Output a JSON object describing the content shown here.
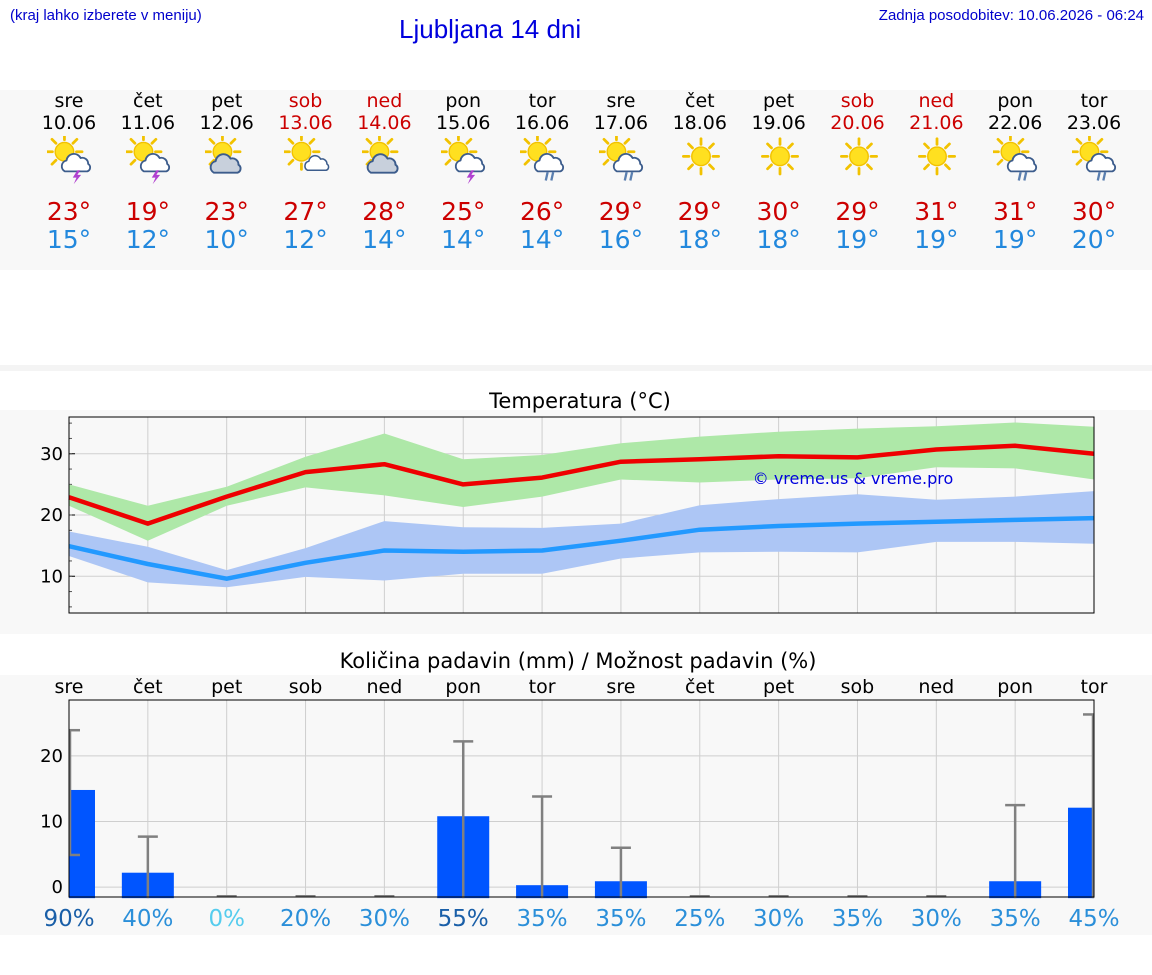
{
  "header": {
    "hint": "(kraj lahko izberete v meniju)",
    "title": "Ljubljana 14 dni",
    "updated": "Zadnja posodobitev: 10.06.2026 - 06:24"
  },
  "colors": {
    "max_temp": "#ee0000",
    "min_temp": "#2299ff",
    "max_range": "#aee8a8",
    "min_range": "#adc6f5",
    "precip_bar": "#0055ff",
    "precip_error": "#808080",
    "weekend": "#cc0000"
  },
  "days": [
    {
      "name": "sre",
      "date": "10.06",
      "weekend": false,
      "icon": "sun-cloud-thunder-icon",
      "max": "23°",
      "min": "15°"
    },
    {
      "name": "čet",
      "date": "11.06",
      "weekend": false,
      "icon": "sun-cloud-thunder-icon",
      "max": "19°",
      "min": "12°"
    },
    {
      "name": "pet",
      "date": "12.06",
      "weekend": false,
      "icon": "sun-cloud-icon",
      "max": "23°",
      "min": "10°"
    },
    {
      "name": "sob",
      "date": "13.06",
      "weekend": true,
      "icon": "sun-small-cloud-icon",
      "max": "27°",
      "min": "12°"
    },
    {
      "name": "ned",
      "date": "14.06",
      "weekend": true,
      "icon": "sun-cloud-icon",
      "max": "28°",
      "min": "14°"
    },
    {
      "name": "pon",
      "date": "15.06",
      "weekend": false,
      "icon": "sun-cloud-thunder-icon",
      "max": "25°",
      "min": "14°"
    },
    {
      "name": "tor",
      "date": "16.06",
      "weekend": false,
      "icon": "sun-cloud-rain-icon",
      "max": "26°",
      "min": "14°"
    },
    {
      "name": "sre",
      "date": "17.06",
      "weekend": false,
      "icon": "sun-cloud-rain-icon",
      "max": "29°",
      "min": "16°"
    },
    {
      "name": "čet",
      "date": "18.06",
      "weekend": false,
      "icon": "sun-icon",
      "max": "29°",
      "min": "18°"
    },
    {
      "name": "pet",
      "date": "19.06",
      "weekend": false,
      "icon": "sun-icon",
      "max": "30°",
      "min": "18°"
    },
    {
      "name": "sob",
      "date": "20.06",
      "weekend": true,
      "icon": "sun-icon",
      "max": "29°",
      "min": "19°"
    },
    {
      "name": "ned",
      "date": "21.06",
      "weekend": true,
      "icon": "sun-icon",
      "max": "31°",
      "min": "19°"
    },
    {
      "name": "pon",
      "date": "22.06",
      "weekend": false,
      "icon": "sun-cloud-rain-icon",
      "max": "31°",
      "min": "19°"
    },
    {
      "name": "tor",
      "date": "23.06",
      "weekend": false,
      "icon": "sun-cloud-rain-icon",
      "max": "30°",
      "min": "20°"
    }
  ],
  "chart_data": [
    {
      "type": "line",
      "title": "Temperatura (°C)",
      "watermark": "© vreme.us & vreme.pro",
      "ylim": [
        4,
        36
      ],
      "yticks": [
        10,
        20,
        30
      ],
      "grid": true,
      "x_count": 14,
      "series": [
        {
          "role": "max",
          "values": [
            22.9,
            18.6,
            23.0,
            27.0,
            28.3,
            25.0,
            26.1,
            28.7,
            29.1,
            29.6,
            29.4,
            30.7,
            31.3,
            30.0
          ],
          "band_low": [
            21.5,
            15.8,
            21.5,
            24.5,
            23.2,
            21.3,
            23.0,
            25.8,
            25.3,
            25.8,
            26.0,
            27.8,
            27.6,
            25.8
          ],
          "band_high": [
            25.0,
            21.5,
            24.6,
            29.5,
            33.3,
            29.1,
            29.8,
            31.7,
            32.8,
            33.6,
            34.1,
            34.5,
            35.1,
            34.4
          ]
        },
        {
          "role": "min",
          "values": [
            14.9,
            12.0,
            9.6,
            12.2,
            14.2,
            14.0,
            14.2,
            15.8,
            17.6,
            18.2,
            18.6,
            18.9,
            19.2,
            19.5
          ],
          "band_low": [
            13.3,
            9.0,
            8.2,
            9.9,
            9.3,
            10.4,
            10.4,
            12.9,
            13.9,
            14.0,
            13.9,
            15.6,
            15.6,
            15.3
          ],
          "band_high": [
            17.3,
            14.8,
            11.0,
            14.6,
            19.0,
            18.0,
            17.9,
            18.6,
            21.6,
            22.6,
            23.4,
            22.5,
            23.0,
            23.9
          ]
        }
      ]
    },
    {
      "type": "bar",
      "title": "Količina padavin (mm) / Možnost padavin (%)",
      "categories": [
        "sre",
        "čet",
        "pet",
        "sob",
        "ned",
        "pon",
        "tor",
        "sre",
        "čet",
        "pet",
        "sob",
        "ned",
        "pon",
        "tor"
      ],
      "ylim": [
        -1.5,
        28.5
      ],
      "yticks": [
        0,
        10,
        20
      ],
      "grid": true,
      "values": [
        14.8,
        2.2,
        0.0,
        0.0,
        0.0,
        10.8,
        0.3,
        0.9,
        0.0,
        0.0,
        0.0,
        0.0,
        0.9,
        12.1
      ],
      "error_low": [
        4.9,
        0.0,
        0.0,
        0.0,
        0.0,
        0.0,
        0.0,
        0.0,
        0.0,
        0.0,
        0.0,
        0.0,
        0.0,
        0.0
      ],
      "error_high": [
        23.9,
        7.7,
        0.0,
        0.0,
        0.0,
        22.2,
        13.8,
        6.0,
        0.0,
        0.0,
        0.0,
        0.0,
        12.5,
        26.3
      ],
      "probabilities": [
        "90%",
        "40%",
        "0%",
        "20%",
        "30%",
        "55%",
        "35%",
        "35%",
        "25%",
        "30%",
        "35%",
        "30%",
        "35%",
        "45%"
      ],
      "probability_colors": [
        "#1a5fa8",
        "#2b8fd9",
        "#55ccee",
        "#2b8fd9",
        "#2b8fd9",
        "#1a5fa8",
        "#2b8fd9",
        "#2b8fd9",
        "#2b8fd9",
        "#2b8fd9",
        "#2b8fd9",
        "#2b8fd9",
        "#2b8fd9",
        "#2b8fd9"
      ]
    }
  ]
}
